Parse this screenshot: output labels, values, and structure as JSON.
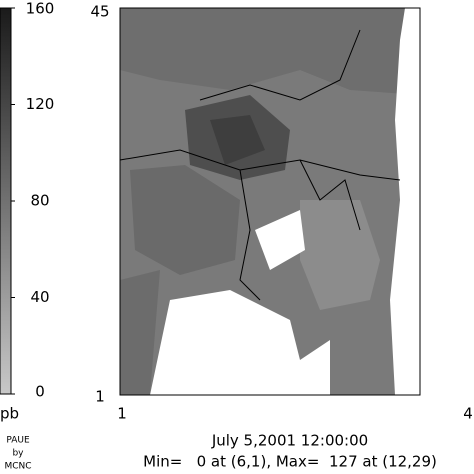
{
  "colorbar": {
    "lim": [
      0,
      160
    ],
    "ticks": [
      160,
      120,
      80,
      40,
      0
    ],
    "unit": "pb"
  },
  "map": {
    "y_labels": [
      "45",
      "1"
    ],
    "x_labels": [
      "1",
      "4"
    ]
  },
  "caption": {
    "date": "July 5,2001 12:00:00",
    "stats": "Min=   0 at (6,1), Max=  127 at (12,29)"
  },
  "credit": [
    "PAUE",
    "by",
    "MCNC"
  ]
}
